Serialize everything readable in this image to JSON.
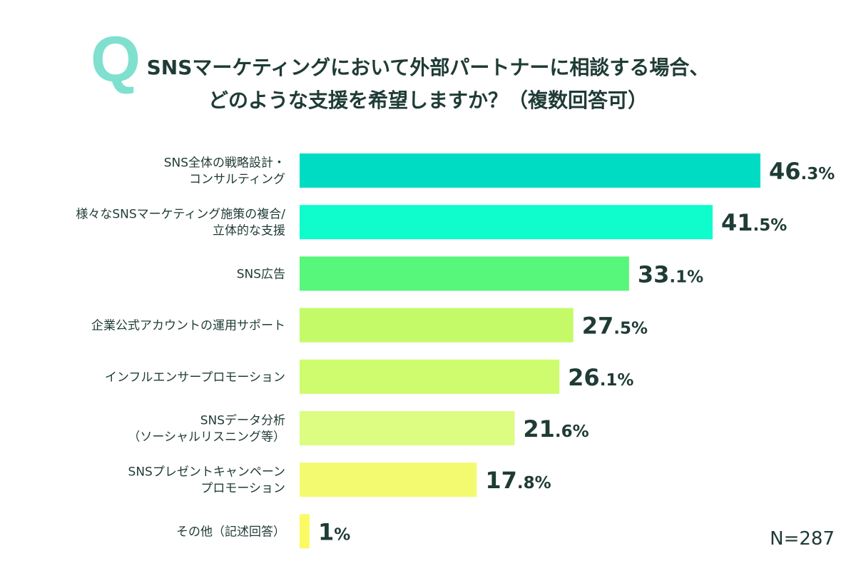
{
  "badge": "Q",
  "title": {
    "line1": "SNSマーケティングにおいて外部パートナーに相談する場合、",
    "line2": "どのような支援を希望しますか？（複数回答可）"
  },
  "sample_size": "N=287",
  "chart_data": {
    "type": "bar",
    "orientation": "horizontal",
    "title": "SNSマーケティングにおいて外部パートナーに相談する場合、どのような支援を希望しますか？（複数回答可）",
    "categories": [
      [
        "SNS全体の戦略設計・",
        "コンサルティング"
      ],
      [
        "様々なSNSマーケティング施策の複合/",
        "立体的な支援"
      ],
      [
        "SNS広告"
      ],
      [
        "企業公式アカウントの運用サポート"
      ],
      [
        "インフルエンサープロモーション"
      ],
      [
        "SNSデータ分析",
        "（ソーシャルリスニング等）"
      ],
      [
        "SNSプレゼントキャンペーン",
        "プロモーション"
      ],
      [
        "その他（記述回答）"
      ]
    ],
    "values": [
      46.3,
      41.5,
      33.1,
      27.5,
      26.1,
      21.6,
      17.8,
      1
    ],
    "value_labels": [
      "46.3%",
      "41.5%",
      "33.1%",
      "27.5%",
      "26.1%",
      "21.6%",
      "17.8%",
      "1%"
    ],
    "colors": [
      "#00dcc3",
      "#0ffccc",
      "#56f77a",
      "#c4fa67",
      "#cefc6e",
      "#dcfc82",
      "#f4fa70",
      "#fbfa65"
    ],
    "unit": "%",
    "xlim": [
      0,
      50
    ],
    "grid": false,
    "legend": "none"
  }
}
